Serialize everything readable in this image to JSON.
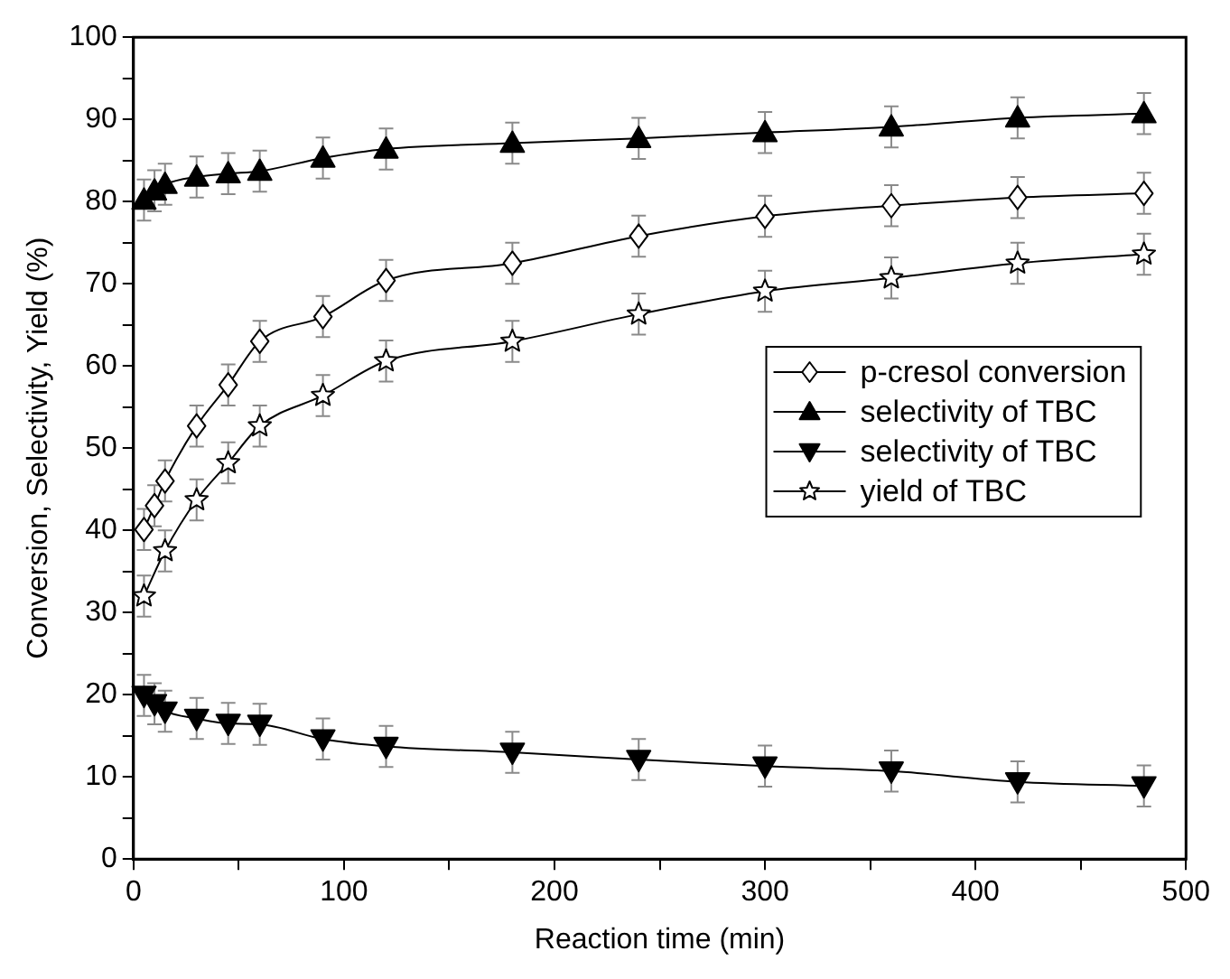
{
  "chart_data": {
    "type": "line",
    "xlabel": "Reaction time (min)",
    "ylabel": "Conversion, Selectivity, Yield (%)",
    "xlim": [
      0,
      500
    ],
    "xticks": [
      0,
      {
        "value": 50,
        "label": null
      },
      100,
      {
        "value": 150,
        "label": null
      },
      200,
      {
        "value": 250,
        "label": null
      },
      300,
      {
        "value": 350,
        "label": null
      },
      400,
      {
        "value": 450,
        "label": null
      },
      500
    ],
    "ylim": [
      0,
      100
    ],
    "yticks": [
      0,
      {
        "value": 5,
        "label": null
      },
      10,
      {
        "value": 15,
        "label": null
      },
      20,
      {
        "value": 25,
        "label": null
      },
      30,
      {
        "value": 35,
        "label": null
      },
      40,
      {
        "value": 45,
        "label": null
      },
      50,
      {
        "value": 55,
        "label": null
      },
      60,
      {
        "value": 65,
        "label": null
      },
      70,
      {
        "value": 75,
        "label": null
      },
      80,
      {
        "value": 85,
        "label": null
      },
      90,
      {
        "value": 95,
        "label": null
      },
      100
    ],
    "grid": false,
    "legend": "right",
    "line_style": "solid",
    "series": [
      {
        "name": "p-cresol conversion",
        "color": "#000000",
        "marker": "diamond",
        "x": [
          5,
          10,
          15,
          30,
          45,
          60,
          90,
          120,
          180,
          240,
          300,
          360,
          420,
          480
        ],
        "values": [
          40.1,
          43,
          46,
          52.7,
          57.7,
          63,
          66,
          70.4,
          72.5,
          75.8,
          78.2,
          79.5,
          80.5,
          81
        ],
        "errors": [
          2.5,
          2.5,
          2.5,
          2.5,
          2.5,
          2.5,
          2.5,
          2.5,
          2.5,
          2.5,
          2.5,
          2.5,
          2.5,
          2.5
        ]
      },
      {
        "name": "selectivity of TBC",
        "color": "#000000",
        "marker": "triangle",
        "x": [
          5,
          10,
          15,
          30,
          45,
          60,
          90,
          120,
          180,
          240,
          300,
          360,
          420,
          480
        ],
        "values": [
          80.2,
          81.3,
          82.1,
          83,
          83.4,
          83.7,
          85.3,
          86.4,
          87.1,
          87.7,
          88.4,
          89.1,
          90.2,
          90.7
        ],
        "errors": [
          2.5,
          2.5,
          2.5,
          2.5,
          2.5,
          2.5,
          2.5,
          2.5,
          2.5,
          2.5,
          2.5,
          2.5,
          2.5,
          2.5
        ]
      },
      {
        "name": "selectivity of TBC",
        "color": "#000000",
        "marker": "triangle-down",
        "x": [
          5,
          10,
          15,
          30,
          45,
          60,
          90,
          120,
          180,
          240,
          300,
          360,
          420,
          480
        ],
        "values": [
          19.9,
          18.9,
          18,
          17.1,
          16.5,
          16.4,
          14.6,
          13.7,
          13,
          12.1,
          11.3,
          10.7,
          9.4,
          8.9
        ],
        "errors": [
          2.5,
          2.5,
          2.5,
          2.5,
          2.5,
          2.5,
          2.5,
          2.5,
          2.5,
          2.5,
          2.5,
          2.5,
          2.5,
          2.5
        ]
      },
      {
        "name": "yield of TBC",
        "color": "#000000",
        "marker": "star",
        "x": [
          5,
          15,
          30,
          45,
          60,
          90,
          120,
          180,
          240,
          300,
          360,
          420,
          480
        ],
        "values": [
          32,
          37.5,
          43.7,
          48.2,
          52.7,
          56.4,
          60.6,
          63,
          66.3,
          69.1,
          70.7,
          72.5,
          73.6
        ],
        "errors": [
          2.5,
          2.5,
          2.5,
          2.5,
          2.5,
          2.5,
          2.5,
          2.5,
          2.5,
          2.5,
          2.5,
          2.5,
          2.5
        ]
      }
    ]
  }
}
